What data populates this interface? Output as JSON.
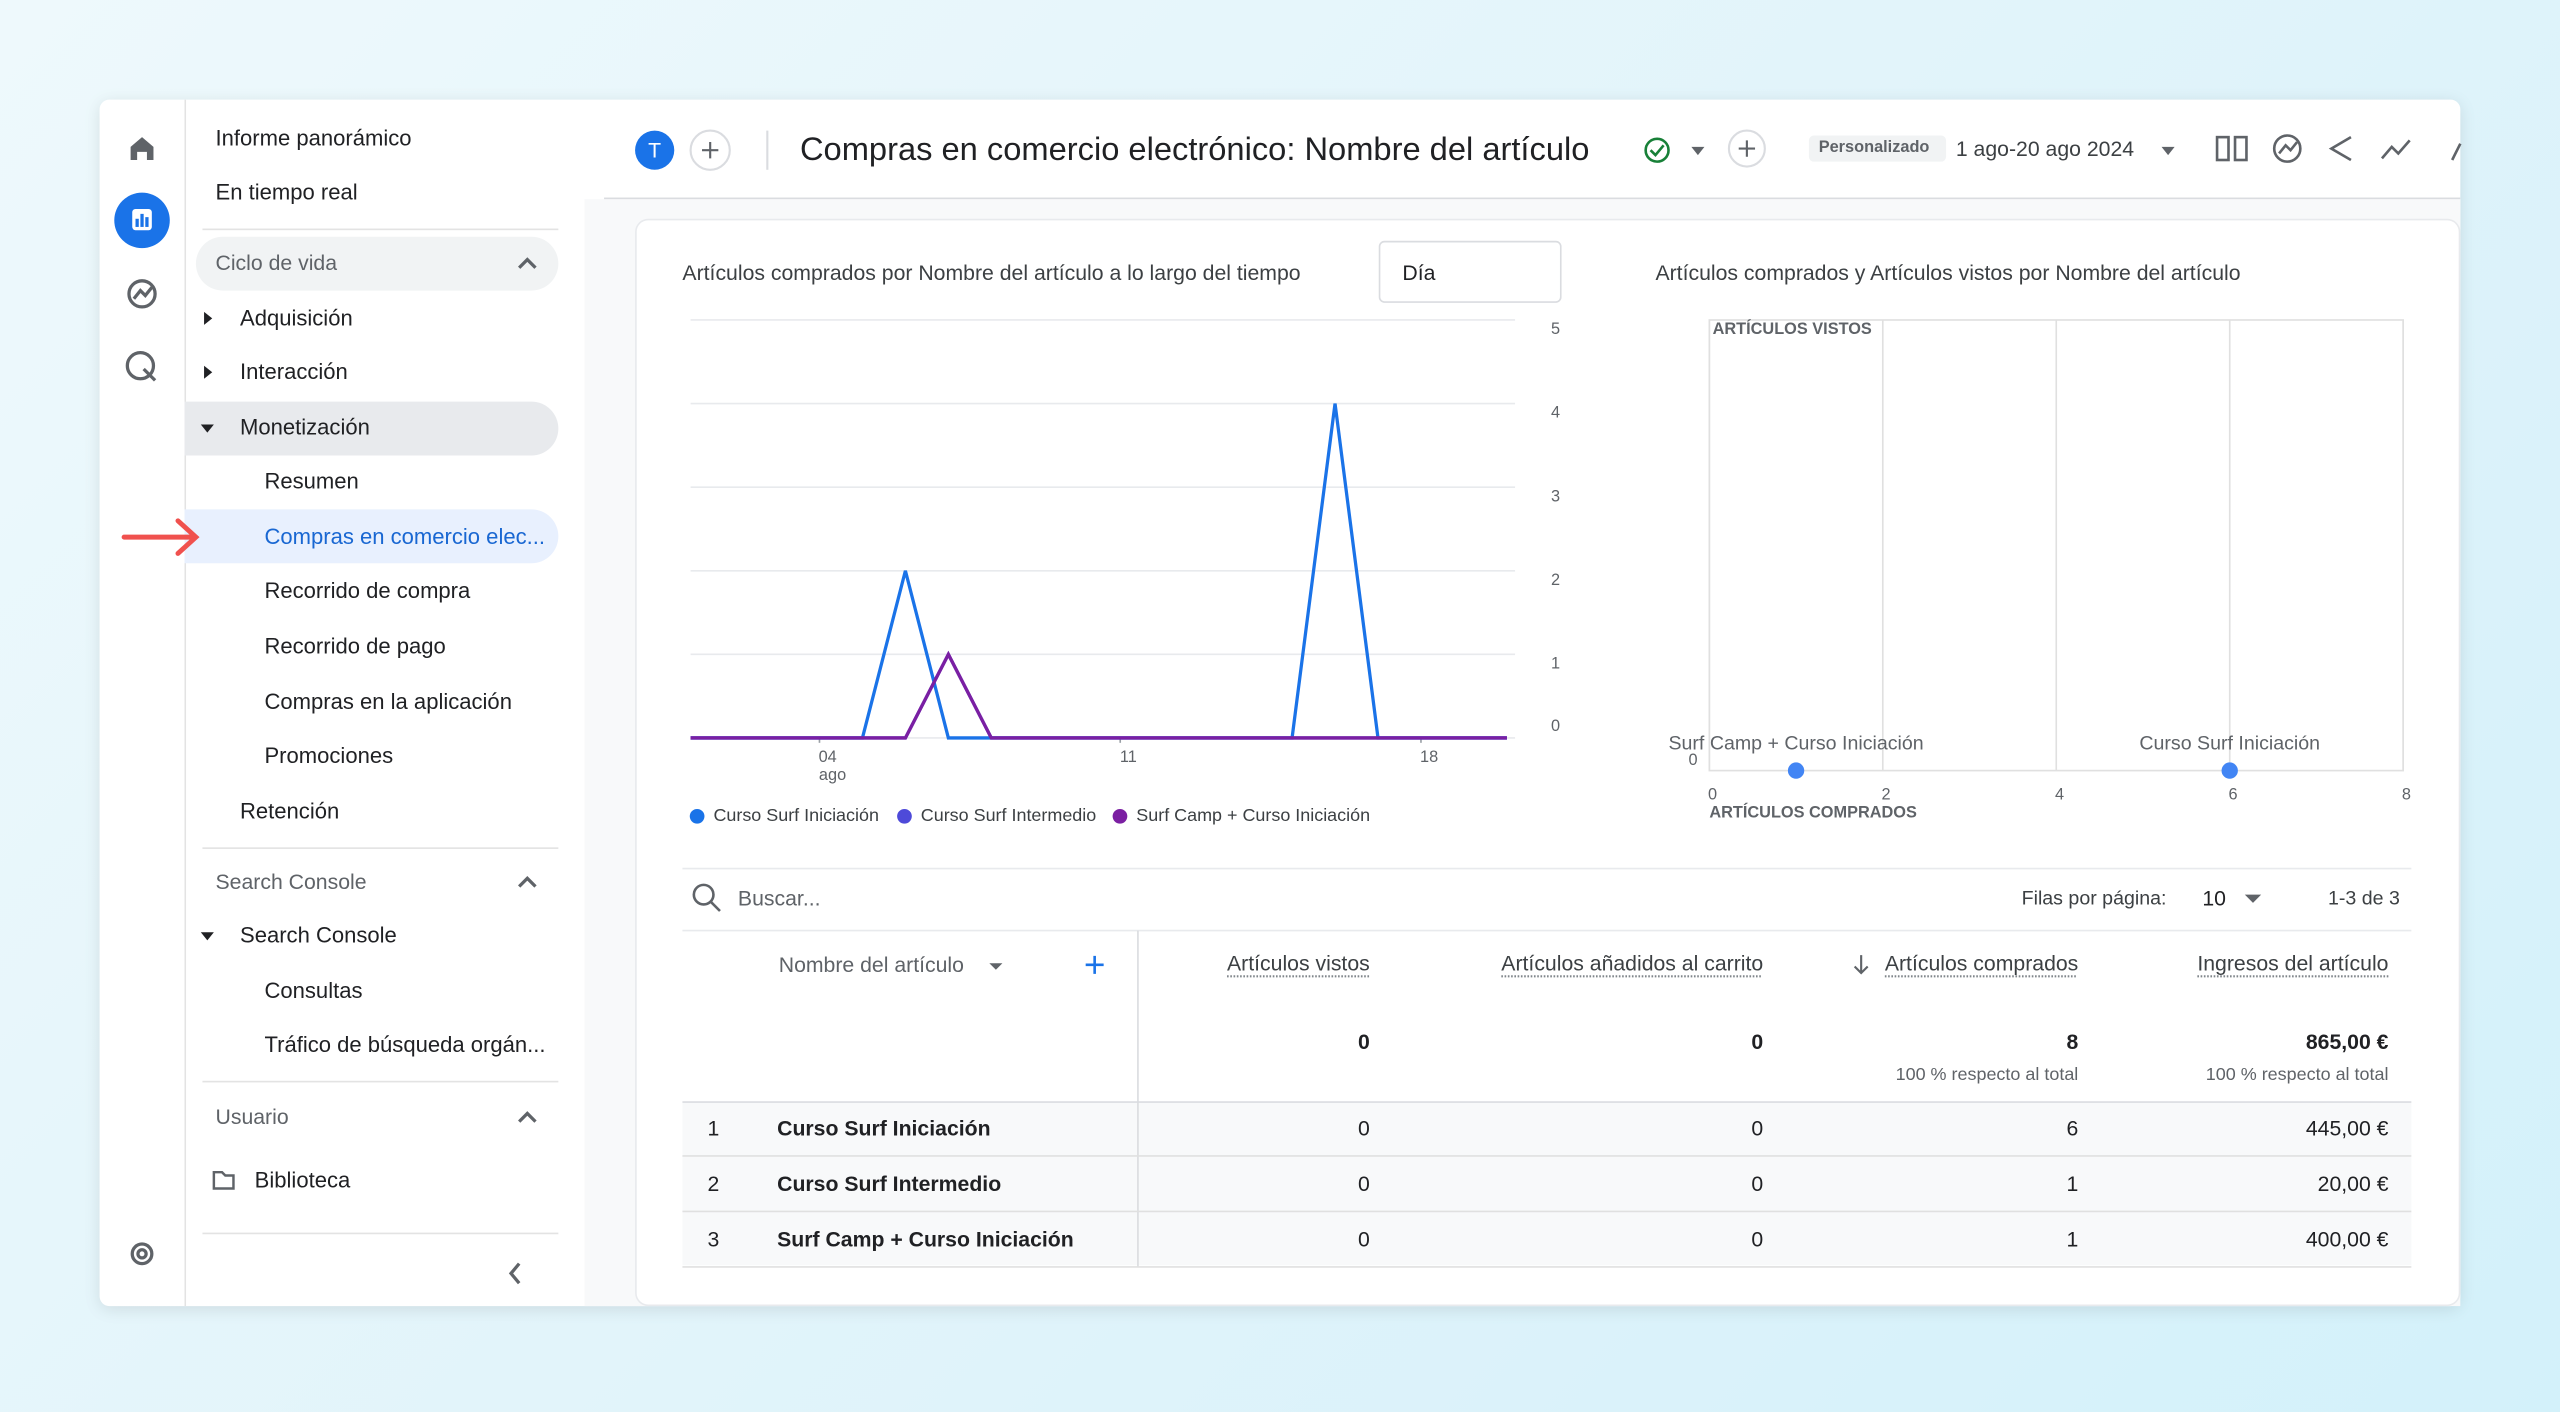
{
  "sidebar": [
    "Informe panorámico",
    "En tiempo real",
    "Ciclo de vida",
    "Adquisición",
    "Interacción",
    "Monetización",
    "Resumen",
    "Compras en comercio elec...",
    "Recorrido de compra",
    "Recorrido de pago",
    "Compras en la aplicación",
    "Promociones",
    "Retención",
    "Search Console",
    "Search Console",
    "Consultas",
    "Tráfico de búsqueda orgán...",
    "Usuario",
    "Biblioteca"
  ],
  "header": {
    "avatar": "T",
    "title": "Compras en comercio electrónico: Nombre del artículo",
    "badge": "Personalizado",
    "date_range": "1 ago-20 ago 2024"
  },
  "chart_data": [
    {
      "type": "line",
      "title": "Artículos comprados por Nombre del artículo a lo largo del tiempo",
      "interval": "Día",
      "x": [
        1,
        2,
        3,
        4,
        5,
        6,
        7,
        8,
        9,
        10,
        11,
        12,
        13,
        14,
        15,
        16,
        17,
        18,
        19,
        20
      ],
      "xlim": [
        1,
        20
      ],
      "xticks": [
        {
          "value": 4,
          "label": "04"
        },
        11,
        18
      ],
      "x_month": "ago",
      "ylim": [
        0,
        5
      ],
      "yticks": [
        0,
        1,
        2,
        3,
        4,
        5
      ],
      "grid": true,
      "series": [
        {
          "name": "Curso Surf Iniciación",
          "color": "#1a73e8",
          "values": [
            0,
            0,
            0,
            0,
            0,
            2,
            0,
            0,
            0,
            0,
            0,
            0,
            0,
            0,
            0,
            4,
            0,
            0,
            0,
            0
          ]
        },
        {
          "name": "Curso Surf Intermedio",
          "color": "#4e4ad9",
          "values": [
            0,
            0,
            0,
            0,
            0,
            0,
            1,
            0,
            0,
            0,
            0,
            0,
            0,
            0,
            0,
            0,
            0,
            0,
            0,
            0
          ]
        },
        {
          "name": "Surf Camp + Curso Iniciación",
          "color": "#7b1fa2",
          "values": [
            0,
            0,
            0,
            0,
            0,
            0,
            1,
            0,
            0,
            0,
            0,
            0,
            0,
            0,
            0,
            0,
            0,
            0,
            0,
            0
          ]
        }
      ]
    },
    {
      "type": "scatter",
      "title": "Artículos comprados y Artículos vistos por Nombre del artículo",
      "xlabel": "ARTÍCULOS COMPRADOS",
      "ylabel": "ARTÍCULOS VISTOS",
      "xlim": [
        0,
        8
      ],
      "xticks": [
        0,
        2,
        4,
        6,
        8
      ],
      "ylim": [
        0,
        1
      ],
      "yticks": [
        0
      ],
      "color": "#4285f4",
      "x": [
        1,
        6
      ],
      "values": [
        0,
        0
      ],
      "labels": [
        "Surf Camp + Curso Iniciación",
        "Curso Surf Iniciación"
      ]
    }
  ],
  "table": {
    "search_placeholder": "Buscar...",
    "rows_per_page_label": "Filas por página:",
    "rows_per_page": 10,
    "range": "1-3 de 3",
    "columns": [
      "Nombre del artículo",
      "Artículos vistos",
      "Artículos añadidos al carrito",
      "Artículos comprados",
      "Ingresos del artículo"
    ],
    "totals": [
      0,
      0,
      8,
      "865,00 €"
    ],
    "totals_notes": [
      "100 % respecto al total",
      "100 % respecto al total"
    ],
    "rows": [
      [
        1,
        "Curso Surf Iniciación",
        0,
        0,
        6,
        "445,00 €"
      ],
      [
        2,
        "Curso Surf Intermedio",
        0,
        0,
        1,
        "20,00 €"
      ],
      [
        3,
        "Surf Camp + Curso Iniciación",
        0,
        0,
        1,
        "400,00 €"
      ]
    ]
  }
}
